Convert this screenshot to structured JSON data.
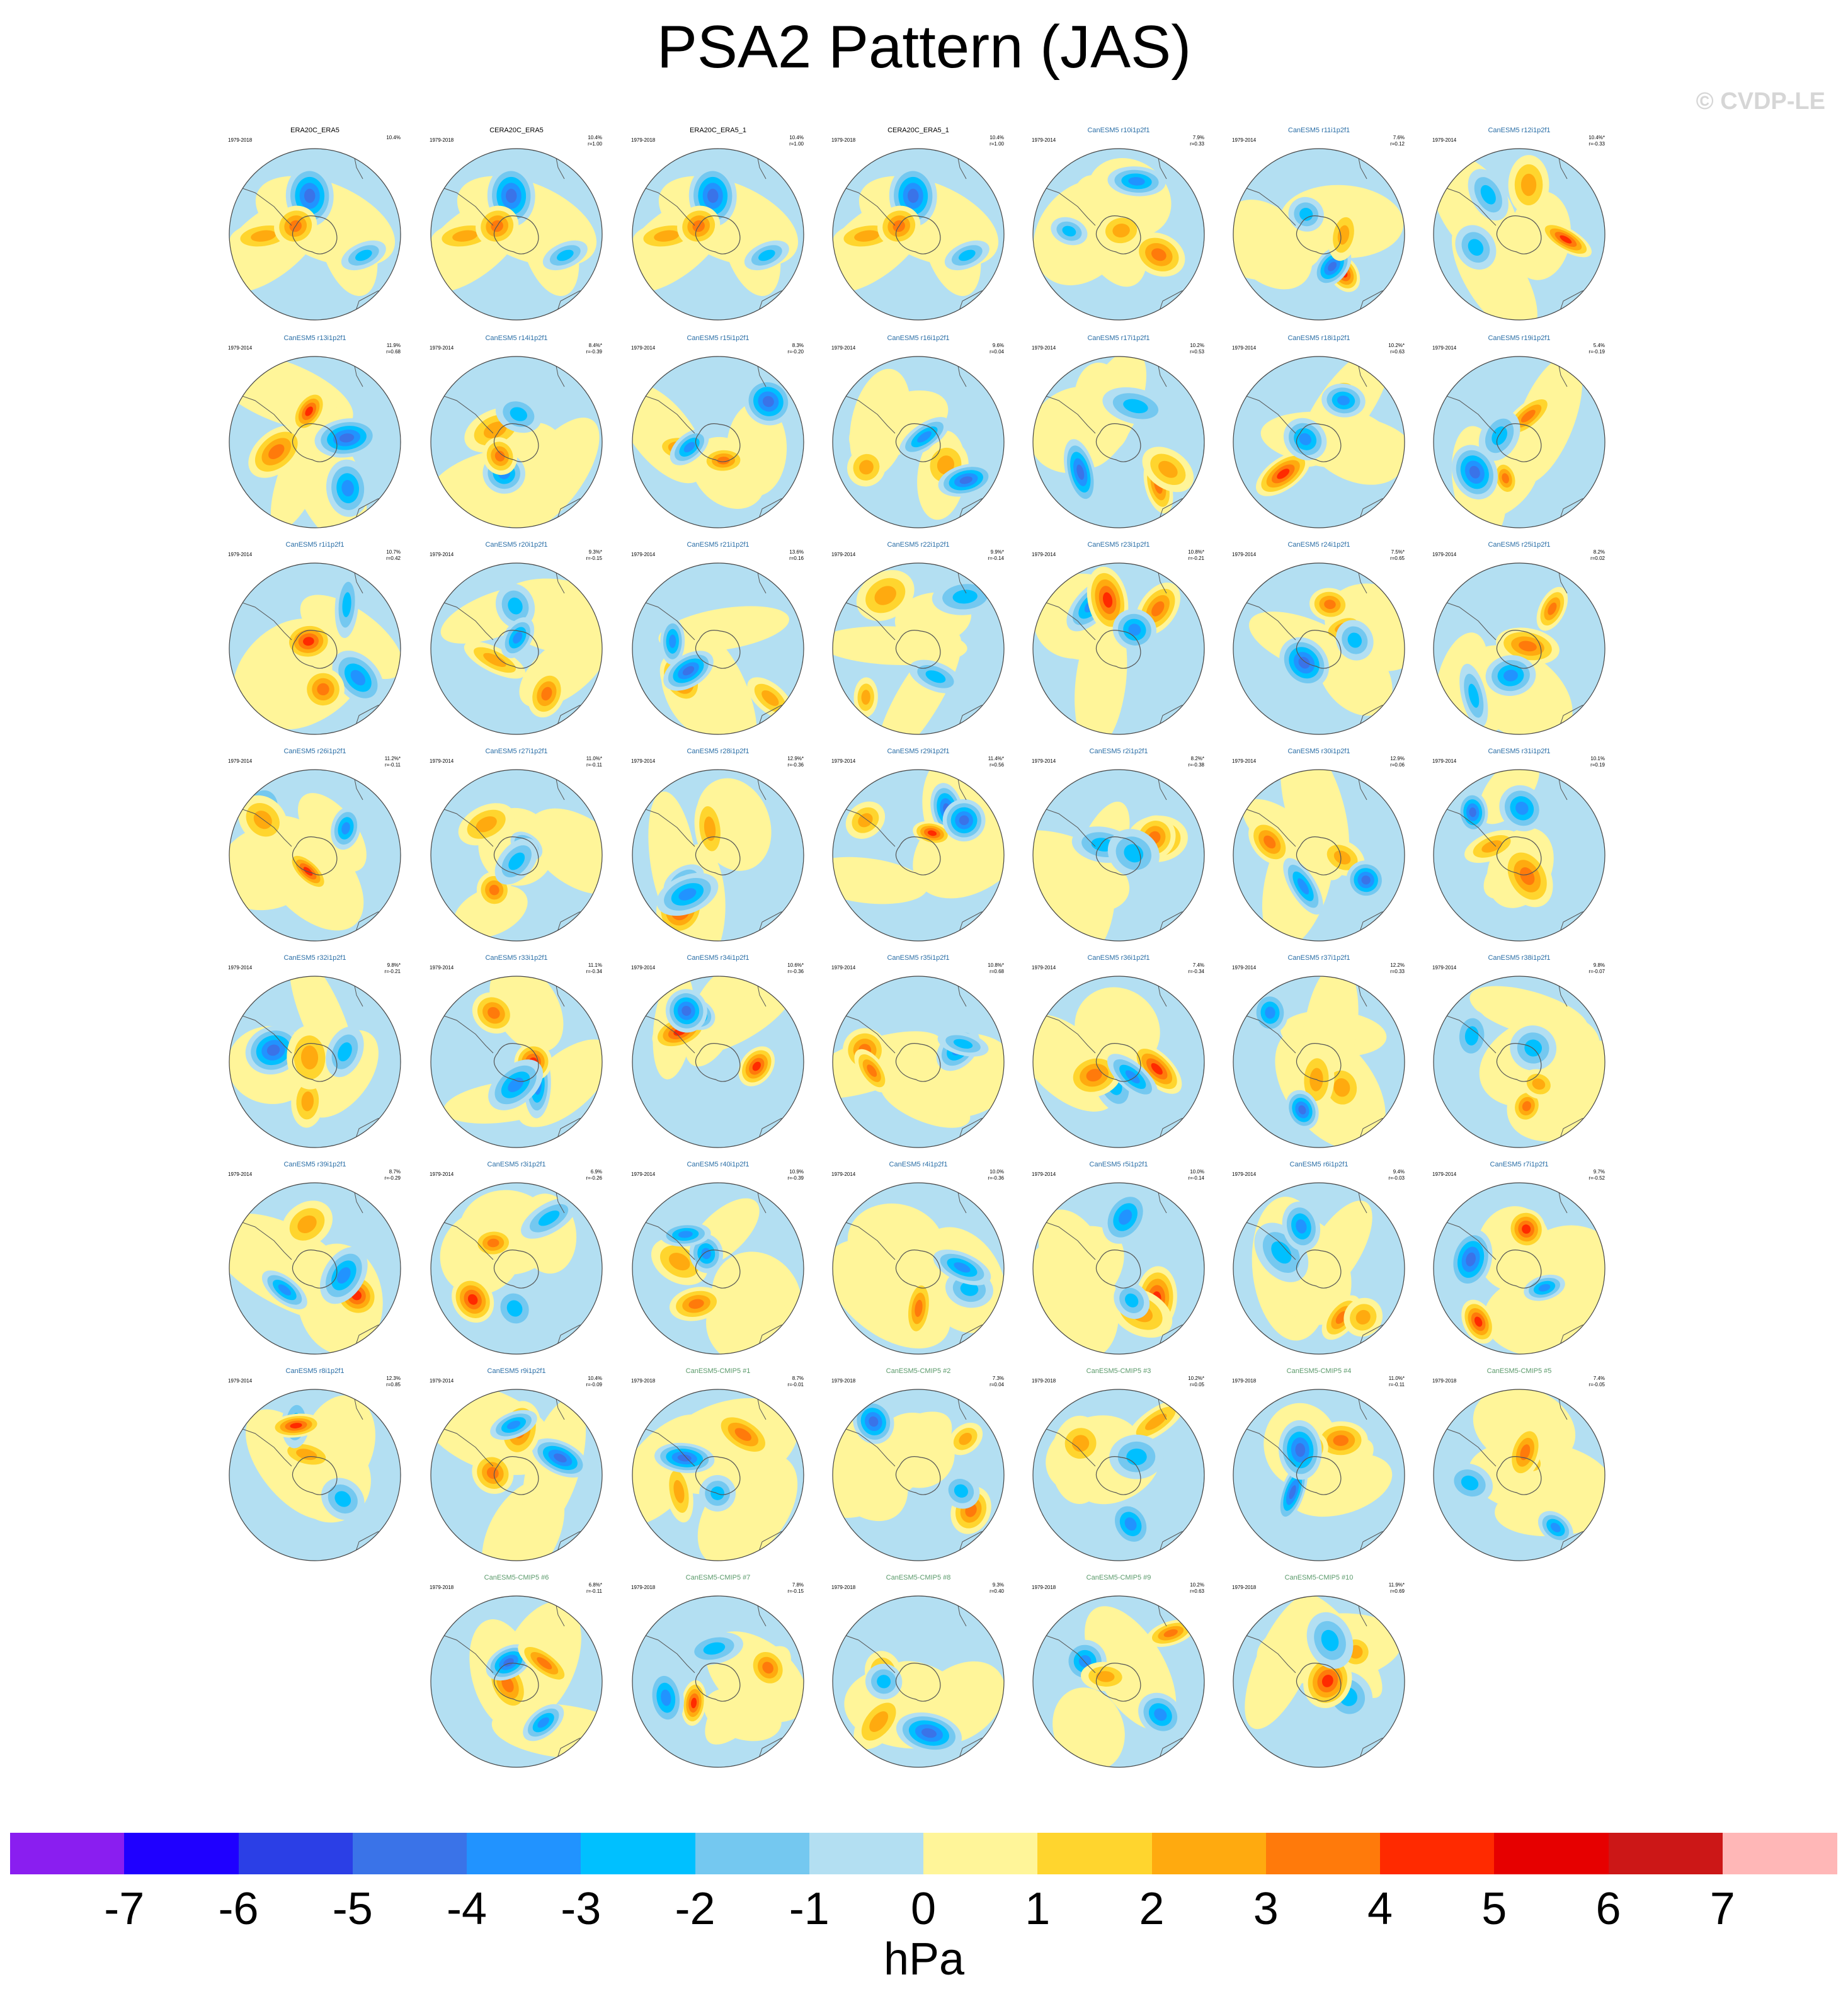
{
  "title": "PSA2 Pattern (JAS)",
  "watermark": "© CVDP-LE",
  "colors": {
    "cmip5_title": "#5b9a6b",
    "ensemble_title": "#2a6ea6",
    "obs_title": "#000000"
  },
  "chart_data": {
    "type": "heatmap",
    "description_type": "polar stereographic maps",
    "colorbar": {
      "units": "hPa",
      "ticks": [
        -7,
        -6,
        -5,
        -4,
        -3,
        -2,
        -1,
        0,
        1,
        2,
        3,
        4,
        5,
        6,
        7
      ],
      "colors": [
        "#8a1ef0",
        "#1f00ff",
        "#2b3fe6",
        "#3a73e8",
        "#2193ff",
        "#00c0ff",
        "#74c8f0",
        "#b3dff2",
        "#fff599",
        "#ffd52e",
        "#ffaa0f",
        "#ff7a0b",
        "#ff2a00",
        "#e60000",
        "#cc1717",
        "#ffb7b7"
      ]
    },
    "panels": [
      {
        "title": "ERA20C_ERA5",
        "period": "1979-2018",
        "pct": "10.4%",
        "r": "",
        "group": "obs",
        "seed": 1
      },
      {
        "title": "CERA20C_ERA5",
        "period": "1979-2018",
        "pct": "10.4%",
        "r": "r=1.00",
        "group": "obs",
        "seed": 1
      },
      {
        "title": "ERA20C_ERA5_1",
        "period": "1979-2018",
        "pct": "10.4%",
        "r": "r=1.00",
        "group": "obs",
        "seed": 1
      },
      {
        "title": "CERA20C_ERA5_1",
        "period": "1979-2018",
        "pct": "10.4%",
        "r": "r=1.00",
        "group": "obs",
        "seed": 1
      },
      {
        "title": "CanESM5 r10i1p2f1",
        "period": "1979-2014",
        "pct": "7.9%",
        "r": "r=0.33",
        "group": "ens",
        "seed": 2
      },
      {
        "title": "CanESM5 r11i1p2f1",
        "period": "1979-2014",
        "pct": "7.6%",
        "r": "r=0.12",
        "group": "ens",
        "seed": 3
      },
      {
        "title": "CanESM5 r12i1p2f1",
        "period": "1979-2014",
        "pct": "10.4%*",
        "r": "r=-0.33",
        "group": "ens",
        "seed": 4
      },
      {
        "title": "CanESM5 r13i1p2f1",
        "period": "1979-2014",
        "pct": "11.9%",
        "r": "r=0.68",
        "group": "ens",
        "seed": 5
      },
      {
        "title": "CanESM5 r14i1p2f1",
        "period": "1979-2014",
        "pct": "8.4%*",
        "r": "r=-0.39",
        "group": "ens",
        "seed": 6
      },
      {
        "title": "CanESM5 r15i1p2f1",
        "period": "1979-2014",
        "pct": "8.3%",
        "r": "r=-0.20",
        "group": "ens",
        "seed": 7
      },
      {
        "title": "CanESM5 r16i1p2f1",
        "period": "1979-2014",
        "pct": "9.6%",
        "r": "r=0.04",
        "group": "ens",
        "seed": 8
      },
      {
        "title": "CanESM5 r17i1p2f1",
        "period": "1979-2014",
        "pct": "10.2%",
        "r": "r=0.53",
        "group": "ens",
        "seed": 9
      },
      {
        "title": "CanESM5 r18i1p2f1",
        "period": "1979-2014",
        "pct": "10.2%*",
        "r": "r=0.63",
        "group": "ens",
        "seed": 10
      },
      {
        "title": "CanESM5 r19i1p2f1",
        "period": "1979-2014",
        "pct": "5.4%",
        "r": "r=-0.19",
        "group": "ens",
        "seed": 11
      },
      {
        "title": "CanESM5 r1i1p2f1",
        "period": "1979-2014",
        "pct": "10.7%",
        "r": "r=0.42",
        "group": "ens",
        "seed": 12
      },
      {
        "title": "CanESM5 r20i1p2f1",
        "period": "1979-2014",
        "pct": "9.3%*",
        "r": "r=-0.15",
        "group": "ens",
        "seed": 13
      },
      {
        "title": "CanESM5 r21i1p2f1",
        "period": "1979-2014",
        "pct": "13.6%",
        "r": "r=0.16",
        "group": "ens",
        "seed": 14
      },
      {
        "title": "CanESM5 r22i1p2f1",
        "period": "1979-2014",
        "pct": "9.9%*",
        "r": "r=-0.14",
        "group": "ens",
        "seed": 15
      },
      {
        "title": "CanESM5 r23i1p2f1",
        "period": "1979-2014",
        "pct": "10.8%*",
        "r": "r=-0.21",
        "group": "ens",
        "seed": 16
      },
      {
        "title": "CanESM5 r24i1p2f1",
        "period": "1979-2014",
        "pct": "7.5%*",
        "r": "r=0.65",
        "group": "ens",
        "seed": 17
      },
      {
        "title": "CanESM5 r25i1p2f1",
        "period": "1979-2014",
        "pct": "8.2%",
        "r": "r=0.02",
        "group": "ens",
        "seed": 18
      },
      {
        "title": "CanESM5 r26i1p2f1",
        "period": "1979-2014",
        "pct": "11.2%*",
        "r": "r=-0.11",
        "group": "ens",
        "seed": 19
      },
      {
        "title": "CanESM5 r27i1p2f1",
        "period": "1979-2014",
        "pct": "11.0%*",
        "r": "r=-0.11",
        "group": "ens",
        "seed": 20
      },
      {
        "title": "CanESM5 r28i1p2f1",
        "period": "1979-2014",
        "pct": "12.9%*",
        "r": "r=-0.36",
        "group": "ens",
        "seed": 21
      },
      {
        "title": "CanESM5 r29i1p2f1",
        "period": "1979-2014",
        "pct": "11.4%*",
        "r": "r=0.56",
        "group": "ens",
        "seed": 22
      },
      {
        "title": "CanESM5 r2i1p2f1",
        "period": "1979-2014",
        "pct": "8.2%*",
        "r": "r=-0.38",
        "group": "ens",
        "seed": 23
      },
      {
        "title": "CanESM5 r30i1p2f1",
        "period": "1979-2014",
        "pct": "12.9%",
        "r": "r=0.06",
        "group": "ens",
        "seed": 24
      },
      {
        "title": "CanESM5 r31i1p2f1",
        "period": "1979-2014",
        "pct": "10.1%",
        "r": "r=0.19",
        "group": "ens",
        "seed": 25
      },
      {
        "title": "CanESM5 r32i1p2f1",
        "period": "1979-2014",
        "pct": "9.8%*",
        "r": "r=-0.21",
        "group": "ens",
        "seed": 26
      },
      {
        "title": "CanESM5 r33i1p2f1",
        "period": "1979-2014",
        "pct": "11.1%",
        "r": "r=-0.34",
        "group": "ens",
        "seed": 27
      },
      {
        "title": "CanESM5 r34i1p2f1",
        "period": "1979-2014",
        "pct": "10.6%*",
        "r": "r=-0.36",
        "group": "ens",
        "seed": 28
      },
      {
        "title": "CanESM5 r35i1p2f1",
        "period": "1979-2014",
        "pct": "10.8%*",
        "r": "r=0.68",
        "group": "ens",
        "seed": 29
      },
      {
        "title": "CanESM5 r36i1p2f1",
        "period": "1979-2014",
        "pct": "7.4%",
        "r": "r=-0.34",
        "group": "ens",
        "seed": 30
      },
      {
        "title": "CanESM5 r37i1p2f1",
        "period": "1979-2014",
        "pct": "12.2%",
        "r": "r=0.33",
        "group": "ens",
        "seed": 31
      },
      {
        "title": "CanESM5 r38i1p2f1",
        "period": "1979-2014",
        "pct": "9.8%",
        "r": "r=-0.07",
        "group": "ens",
        "seed": 32
      },
      {
        "title": "CanESM5 r39i1p2f1",
        "period": "1979-2014",
        "pct": "8.7%",
        "r": "r=-0.29",
        "group": "ens",
        "seed": 33
      },
      {
        "title": "CanESM5 r3i1p2f1",
        "period": "1979-2014",
        "pct": "6.9%",
        "r": "r=-0.26",
        "group": "ens",
        "seed": 34
      },
      {
        "title": "CanESM5 r40i1p2f1",
        "period": "1979-2014",
        "pct": "10.9%",
        "r": "r=-0.39",
        "group": "ens",
        "seed": 35
      },
      {
        "title": "CanESM5 r4i1p2f1",
        "period": "1979-2014",
        "pct": "10.0%",
        "r": "r=-0.36",
        "group": "ens",
        "seed": 36
      },
      {
        "title": "CanESM5 r5i1p2f1",
        "period": "1979-2014",
        "pct": "10.0%",
        "r": "r=-0.14",
        "group": "ens",
        "seed": 37
      },
      {
        "title": "CanESM5 r6i1p2f1",
        "period": "1979-2014",
        "pct": "9.4%",
        "r": "r=-0.03",
        "group": "ens",
        "seed": 38
      },
      {
        "title": "CanESM5 r7i1p2f1",
        "period": "1979-2014",
        "pct": "9.7%",
        "r": "r=-0.52",
        "group": "ens",
        "seed": 39
      },
      {
        "title": "CanESM5 r8i1p2f1",
        "period": "1979-2014",
        "pct": "12.3%",
        "r": "r=0.85",
        "group": "ens",
        "seed": 40
      },
      {
        "title": "CanESM5 r9i1p2f1",
        "period": "1979-2014",
        "pct": "10.4%",
        "r": "r=-0.09",
        "group": "ens",
        "seed": 41
      },
      {
        "title": "CanESM5-CMIP5 #1",
        "period": "1979-2018",
        "pct": "8.7%",
        "r": "r=-0.01",
        "group": "cmip5",
        "seed": 42
      },
      {
        "title": "CanESM5-CMIP5 #2",
        "period": "1979-2018",
        "pct": "7.3%",
        "r": "r=0.04",
        "group": "cmip5",
        "seed": 43
      },
      {
        "title": "CanESM5-CMIP5 #3",
        "period": "1979-2018",
        "pct": "10.2%*",
        "r": "r=0.05",
        "group": "cmip5",
        "seed": 44
      },
      {
        "title": "CanESM5-CMIP5 #4",
        "period": "1979-2018",
        "pct": "11.0%*",
        "r": "r=-0.11",
        "group": "cmip5",
        "seed": 45
      },
      {
        "title": "CanESM5-CMIP5 #5",
        "period": "1979-2018",
        "pct": "7.4%",
        "r": "r=-0.05",
        "group": "cmip5",
        "seed": 46
      },
      {
        "title": "CanESM5-CMIP5 #6",
        "period": "1979-2018",
        "pct": "6.8%*",
        "r": "r=-0.11",
        "group": "cmip5",
        "seed": 47
      },
      {
        "title": "CanESM5-CMIP5 #7",
        "period": "1979-2018",
        "pct": "7.8%",
        "r": "r=-0.15",
        "group": "cmip5",
        "seed": 48
      },
      {
        "title": "CanESM5-CMIP5 #8",
        "period": "1979-2018",
        "pct": "9.3%",
        "r": "r=0.40",
        "group": "cmip5",
        "seed": 49
      },
      {
        "title": "CanESM5-CMIP5 #9",
        "period": "1979-2018",
        "pct": "10.2%",
        "r": "r=0.63",
        "group": "cmip5",
        "seed": 50
      },
      {
        "title": "CanESM5-CMIP5 #10",
        "period": "1979-2018",
        "pct": "11.9%*",
        "r": "r=0.69",
        "group": "cmip5",
        "seed": 51
      }
    ]
  }
}
